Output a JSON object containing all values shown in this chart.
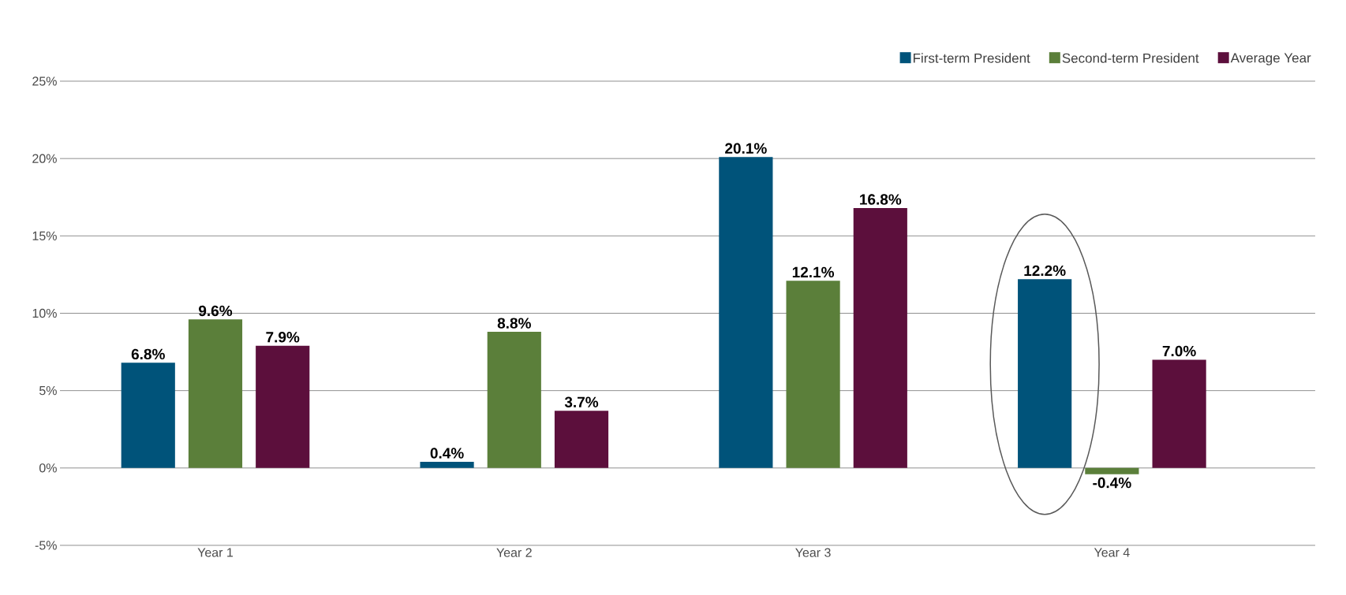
{
  "chart_data": {
    "type": "bar",
    "categories": [
      "Year 1",
      "Year 2",
      "Year 3",
      "Year 4"
    ],
    "series": [
      {
        "name": "First-term President",
        "color": "#00537a",
        "values": [
          6.8,
          0.4,
          20.1,
          12.2
        ],
        "value_labels": [
          "6.8%",
          "0.4%",
          "20.1%",
          "12.2%"
        ]
      },
      {
        "name": "Second-term President",
        "color": "#5b7f3a",
        "values": [
          9.6,
          8.8,
          12.1,
          -0.4
        ],
        "value_labels": [
          "9.6%",
          "8.8%",
          "12.1%",
          "-0.4%"
        ]
      },
      {
        "name": "Average Year",
        "color": "#5c0f3c",
        "values": [
          7.9,
          3.7,
          16.8,
          7.0
        ],
        "value_labels": [
          "7.9%",
          "3.7%",
          "16.8%",
          "7.0%"
        ]
      }
    ],
    "ylim": [
      -5,
      25
    ],
    "yticks": [
      {
        "value": -5,
        "label": "-5%"
      },
      {
        "value": 0,
        "label": "0%"
      },
      {
        "value": 5,
        "label": "5%"
      },
      {
        "value": 10,
        "label": "10%"
      },
      {
        "value": 15,
        "label": "15%"
      },
      {
        "value": 20,
        "label": "20%"
      },
      {
        "value": 25,
        "label": "25%"
      }
    ],
    "grid": "y",
    "legend": "top right"
  }
}
